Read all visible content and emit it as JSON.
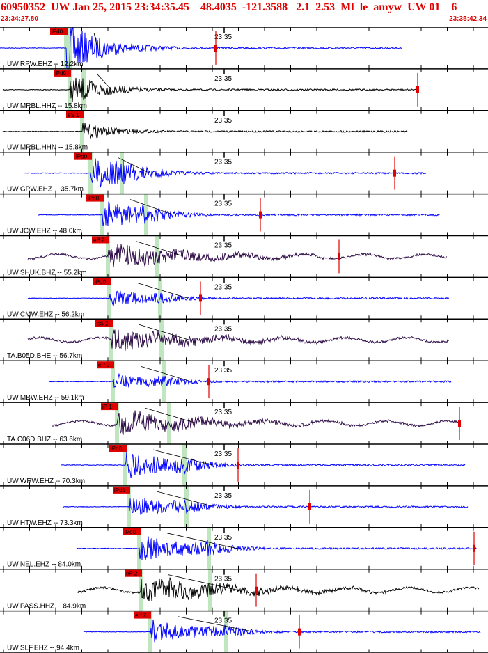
{
  "header": {
    "title": "60950352  UW Jan 25, 2015 23:34:35.45    48.4035  -121.3588   2.1  2.53  Ml  le  amyw  UW 01    6",
    "time_start": "23:34:27.80",
    "time_end": "23:35:42.34"
  },
  "minute_label": "23:35",
  "colors": {
    "accent": "#e00000",
    "blue": "#0000ff",
    "black": "#000000",
    "purple": "#2a0845",
    "phase_band": "#bfe6bf"
  },
  "traces": [
    {
      "station": "UW.RPW.EHZ -- 12.2km",
      "phase": "iPd0",
      "color": "blue",
      "start": 0,
      "end": 577,
      "onset": 95,
      "s": 100,
      "amp": 1.0,
      "kind": "noise",
      "mark": 310
    },
    {
      "station": "UW.MRBL.HHZ -- 15.8km",
      "phase": "iPd0",
      "color": "black",
      "start": 4,
      "end": 600,
      "onset": 100,
      "s": 120,
      "amp": 0.55,
      "kind": "noise",
      "mark": 600
    },
    {
      "station": "UW.MRBL.HHN -- 15.8km",
      "phase": "eS 1",
      "color": "black",
      "start": 4,
      "end": 585,
      "onset": 118,
      "s": 118,
      "amp": 0.35,
      "kind": "noise",
      "mark": null
    },
    {
      "station": "UW.GPW.EHZ -- 35.7km",
      "phase": "iPd0",
      "color": "blue",
      "start": 35,
      "end": 612,
      "onset": 130,
      "s": 175,
      "amp": 0.8,
      "kind": "noise",
      "mark": 567
    },
    {
      "station": "UW.JCW.EHZ -- 48.0km",
      "phase": "iPd0",
      "color": "blue",
      "start": 54,
      "end": 632,
      "onset": 147,
      "s": 210,
      "amp": 0.7,
      "kind": "noise",
      "mark": 374
    },
    {
      "station": "UW.SHUK.BHZ -- 55.2km",
      "phase": "eP 2",
      "color": "purple",
      "start": 40,
      "end": 642,
      "onset": 155,
      "s": 225,
      "amp": 0.55,
      "kind": "wave",
      "mark": 487
    },
    {
      "station": "UW.CMW.EHZ -- 56.2km",
      "phase": "iPd0",
      "color": "blue",
      "start": 40,
      "end": 645,
      "onset": 157,
      "s": 230,
      "amp": 0.45,
      "kind": "noise",
      "mark": 288
    },
    {
      "station": "TA.B05D.BHE -- 56.7km",
      "phase": "eS 2",
      "color": "purple",
      "start": 40,
      "end": 645,
      "onset": 160,
      "s": 232,
      "amp": 0.55,
      "kind": "wave",
      "mark": null
    },
    {
      "station": "UW.MBW.EHZ -- 59.1km",
      "phase": "eP 2",
      "color": "blue",
      "start": 70,
      "end": 648,
      "onset": 162,
      "s": 235,
      "amp": 0.45,
      "kind": "noise",
      "mark": 300
    },
    {
      "station": "TA.C06D.BHZ -- 63.6km",
      "phase": "iP 1",
      "color": "purple",
      "start": 75,
      "end": 660,
      "onset": 168,
      "s": 243,
      "amp": 0.55,
      "kind": "wave",
      "mark": 660
    },
    {
      "station": "UW.WRW.EHZ -- 70.3km",
      "phase": "iPd0",
      "color": "blue",
      "start": 88,
      "end": 668,
      "onset": 180,
      "s": 265,
      "amp": 0.75,
      "kind": "noise",
      "mark": 342
    },
    {
      "station": "UW.HTW.EHZ -- 73.3km",
      "phase": "iPd1",
      "color": "blue",
      "start": 90,
      "end": 672,
      "onset": 185,
      "s": 268,
      "amp": 0.6,
      "kind": "noise",
      "mark": 445
    },
    {
      "station": "UW.NEL.EHZ -- 84.0km",
      "phase": "iPd0",
      "color": "blue",
      "start": 110,
      "end": 685,
      "onset": 200,
      "s": 300,
      "amp": 0.75,
      "kind": "noise",
      "mark": 681
    },
    {
      "station": "UW.PASS.HHZ -- 84.9km",
      "phase": "eP 2",
      "color": "black",
      "start": 112,
      "end": 688,
      "onset": 202,
      "s": 302,
      "amp": 0.6,
      "kind": "wave",
      "mark": 368
    },
    {
      "station": "UW.SLF.EHZ -- 94.4km",
      "phase": "eP 2",
      "color": "blue",
      "start": 120,
      "end": 690,
      "onset": 215,
      "s": 325,
      "amp": 0.7,
      "kind": "noise",
      "mark": 430
    }
  ]
}
